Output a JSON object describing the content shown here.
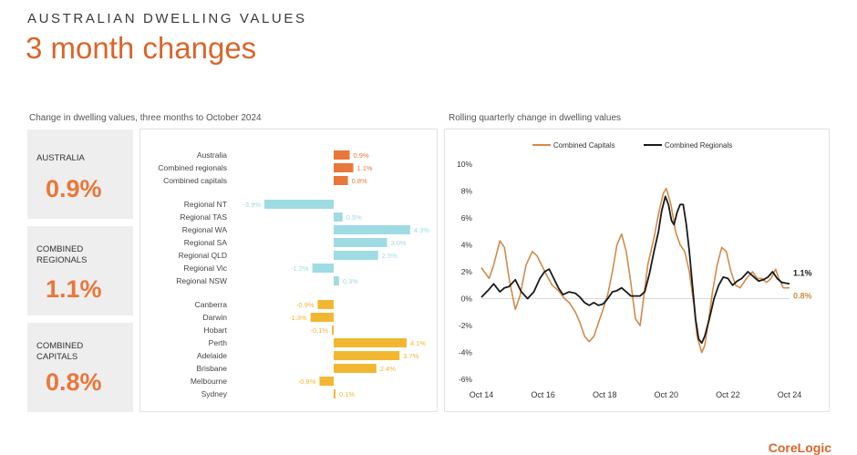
{
  "header": {
    "eyebrow": "AUSTRALIAN DWELLING VALUES",
    "title": "3 month changes"
  },
  "left_subtitle": "Change in dwelling values, three months to October 2024",
  "right_subtitle": "Rolling quarterly change in dwelling values",
  "kpis": [
    {
      "label": "AUSTRALIA",
      "value": "0.9%"
    },
    {
      "label": "COMBINED REGIONALS",
      "value": "1.1%"
    },
    {
      "label": "COMBINED CAPITALS",
      "value": "0.8%"
    }
  ],
  "footer_brand": "CoreLogic",
  "colors": {
    "accent": "#d9652b",
    "national_bar": "#e8773a",
    "regional_bar": "#9fdbe3",
    "capital_bar": "#f2b731",
    "capitals_line": "#d38a4a",
    "regionals_line": "#1a1a1a"
  },
  "chart_data": [
    {
      "type": "bar",
      "orientation": "horizontal",
      "title": "Change in dwelling values, three months to October 2024",
      "unit": "%",
      "groups": [
        {
          "color_key": "national_bar",
          "categories": [
            "Australia",
            "Combined regionals",
            "Combined capitals"
          ],
          "values": [
            0.9,
            1.1,
            0.8
          ],
          "labels": [
            "0.9%",
            "1.1%",
            "0.8%"
          ]
        },
        {
          "color_key": "regional_bar",
          "categories": [
            "Regional NT",
            "Regional TAS",
            "Regional WA",
            "Regional SA",
            "Regional QLD",
            "Regional Vic",
            "Regional NSW"
          ],
          "values": [
            -3.9,
            0.5,
            4.3,
            3.0,
            2.5,
            -1.2,
            0.3
          ],
          "labels": [
            "-3.9%",
            "0.5%",
            "4.3%",
            "3.0%",
            "2.5%",
            "-1.2%",
            "0.3%"
          ]
        },
        {
          "color_key": "capital_bar",
          "categories": [
            "Canberra",
            "Darwin",
            "Hobart",
            "Perth",
            "Adelaide",
            "Brisbane",
            "Melbourne",
            "Sydney"
          ],
          "values": [
            -0.9,
            -1.3,
            -0.1,
            4.1,
            3.7,
            2.4,
            -0.8,
            0.1
          ],
          "labels": [
            "-0.9%",
            "-1.3%",
            "-0.1%",
            "4.1%",
            "3.7%",
            "2.4%",
            "-0.8%",
            "0.1%"
          ]
        }
      ]
    },
    {
      "type": "line",
      "title": "Rolling quarterly change in dwelling values",
      "x_tick_labels": [
        "Oct 14",
        "Oct 16",
        "Oct 18",
        "Oct 20",
        "Oct 22",
        "Oct 24"
      ],
      "x_range": [
        2014.75,
        2024.75
      ],
      "ylim": [
        -6,
        10
      ],
      "y_ticks": [
        -6,
        -4,
        -2,
        0,
        2,
        4,
        6,
        8,
        10
      ],
      "y_tick_labels": [
        "-6%",
        "-4%",
        "-2%",
        "0%",
        "2%",
        "4%",
        "6%",
        "8%",
        "10%"
      ],
      "legend_position": "top",
      "series": [
        {
          "name": "Combined Capitals",
          "color_key": "capitals_line",
          "end_label": "0.8%",
          "points": [
            [
              2014.75,
              2.3
            ],
            [
              2015.0,
              1.5
            ],
            [
              2015.15,
              2.5
            ],
            [
              2015.35,
              4.3
            ],
            [
              2015.5,
              3.8
            ],
            [
              2015.65,
              1.5
            ],
            [
              2015.85,
              -0.8
            ],
            [
              2016.0,
              0.2
            ],
            [
              2016.2,
              2.5
            ],
            [
              2016.4,
              3.5
            ],
            [
              2016.55,
              3.2
            ],
            [
              2016.75,
              2.3
            ],
            [
              2016.9,
              1.6
            ],
            [
              2017.05,
              1.0
            ],
            [
              2017.25,
              0.6
            ],
            [
              2017.45,
              0.0
            ],
            [
              2017.6,
              -0.3
            ],
            [
              2017.8,
              -1.0
            ],
            [
              2017.95,
              -1.8
            ],
            [
              2018.1,
              -2.8
            ],
            [
              2018.25,
              -3.2
            ],
            [
              2018.4,
              -2.8
            ],
            [
              2018.55,
              -1.8
            ],
            [
              2018.7,
              -0.8
            ],
            [
              2018.85,
              0.3
            ],
            [
              2019.0,
              2.0
            ],
            [
              2019.15,
              4.0
            ],
            [
              2019.3,
              4.8
            ],
            [
              2019.45,
              3.5
            ],
            [
              2019.6,
              1.2
            ],
            [
              2019.75,
              -1.5
            ],
            [
              2019.9,
              -2.0
            ],
            [
              2020.0,
              -0.2
            ],
            [
              2020.15,
              2.5
            ],
            [
              2020.35,
              4.5
            ],
            [
              2020.5,
              6.3
            ],
            [
              2020.65,
              7.8
            ],
            [
              2020.75,
              8.2
            ],
            [
              2020.9,
              7.0
            ],
            [
              2021.05,
              5.0
            ],
            [
              2021.2,
              4.0
            ],
            [
              2021.35,
              3.5
            ],
            [
              2021.5,
              2.0
            ],
            [
              2021.65,
              -0.5
            ],
            [
              2021.75,
              -2.8
            ],
            [
              2021.9,
              -4.0
            ],
            [
              2022.0,
              -3.5
            ],
            [
              2022.1,
              -2.0
            ],
            [
              2022.25,
              0.5
            ],
            [
              2022.4,
              2.5
            ],
            [
              2022.55,
              3.8
            ],
            [
              2022.7,
              3.5
            ],
            [
              2022.85,
              2.0
            ],
            [
              2023.0,
              1.0
            ],
            [
              2023.15,
              0.8
            ],
            [
              2023.35,
              1.5
            ],
            [
              2023.55,
              2.0
            ],
            [
              2023.7,
              1.5
            ],
            [
              2023.85,
              1.5
            ],
            [
              2024.0,
              1.2
            ],
            [
              2024.15,
              1.5
            ],
            [
              2024.3,
              2.2
            ],
            [
              2024.4,
              1.5
            ],
            [
              2024.55,
              0.8
            ],
            [
              2024.75,
              0.8
            ]
          ]
        },
        {
          "name": "Combined Regionals",
          "color_key": "regionals_line",
          "end_label": "1.1%",
          "points": [
            [
              2014.75,
              0.1
            ],
            [
              2015.0,
              0.7
            ],
            [
              2015.15,
              1.1
            ],
            [
              2015.35,
              0.5
            ],
            [
              2015.5,
              0.8
            ],
            [
              2015.65,
              0.9
            ],
            [
              2015.85,
              1.4
            ],
            [
              2016.05,
              0.5
            ],
            [
              2016.25,
              0.0
            ],
            [
              2016.45,
              0.5
            ],
            [
              2016.65,
              1.5
            ],
            [
              2016.8,
              2.0
            ],
            [
              2016.95,
              2.2
            ],
            [
              2017.1,
              1.5
            ],
            [
              2017.25,
              0.8
            ],
            [
              2017.4,
              0.3
            ],
            [
              2017.6,
              0.5
            ],
            [
              2017.8,
              0.4
            ],
            [
              2017.95,
              0.1
            ],
            [
              2018.1,
              -0.3
            ],
            [
              2018.25,
              -0.5
            ],
            [
              2018.4,
              -0.3
            ],
            [
              2018.55,
              -0.5
            ],
            [
              2018.7,
              -0.4
            ],
            [
              2018.85,
              0.0
            ],
            [
              2019.0,
              0.5
            ],
            [
              2019.15,
              0.6
            ],
            [
              2019.3,
              0.8
            ],
            [
              2019.45,
              0.5
            ],
            [
              2019.6,
              0.2
            ],
            [
              2019.75,
              0.2
            ],
            [
              2019.9,
              0.2
            ],
            [
              2020.05,
              0.5
            ],
            [
              2020.2,
              1.8
            ],
            [
              2020.35,
              3.5
            ],
            [
              2020.5,
              5.0
            ],
            [
              2020.6,
              6.5
            ],
            [
              2020.72,
              7.6
            ],
            [
              2020.82,
              7.0
            ],
            [
              2020.92,
              5.8
            ],
            [
              2021.0,
              5.5
            ],
            [
              2021.1,
              6.4
            ],
            [
              2021.2,
              7.0
            ],
            [
              2021.3,
              7.0
            ],
            [
              2021.4,
              5.5
            ],
            [
              2021.5,
              3.5
            ],
            [
              2021.6,
              1.0
            ],
            [
              2021.7,
              -1.5
            ],
            [
              2021.8,
              -3.0
            ],
            [
              2021.9,
              -3.3
            ],
            [
              2022.0,
              -2.8
            ],
            [
              2022.15,
              -1.5
            ],
            [
              2022.3,
              0.0
            ],
            [
              2022.45,
              1.0
            ],
            [
              2022.6,
              1.6
            ],
            [
              2022.75,
              1.5
            ],
            [
              2022.9,
              1.0
            ],
            [
              2023.05,
              1.3
            ],
            [
              2023.2,
              1.5
            ],
            [
              2023.4,
              2.0
            ],
            [
              2023.6,
              1.6
            ],
            [
              2023.75,
              1.3
            ],
            [
              2023.9,
              1.4
            ],
            [
              2024.05,
              1.6
            ],
            [
              2024.2,
              2.0
            ],
            [
              2024.35,
              1.5
            ],
            [
              2024.5,
              1.2
            ],
            [
              2024.75,
              1.1
            ]
          ]
        }
      ]
    }
  ]
}
